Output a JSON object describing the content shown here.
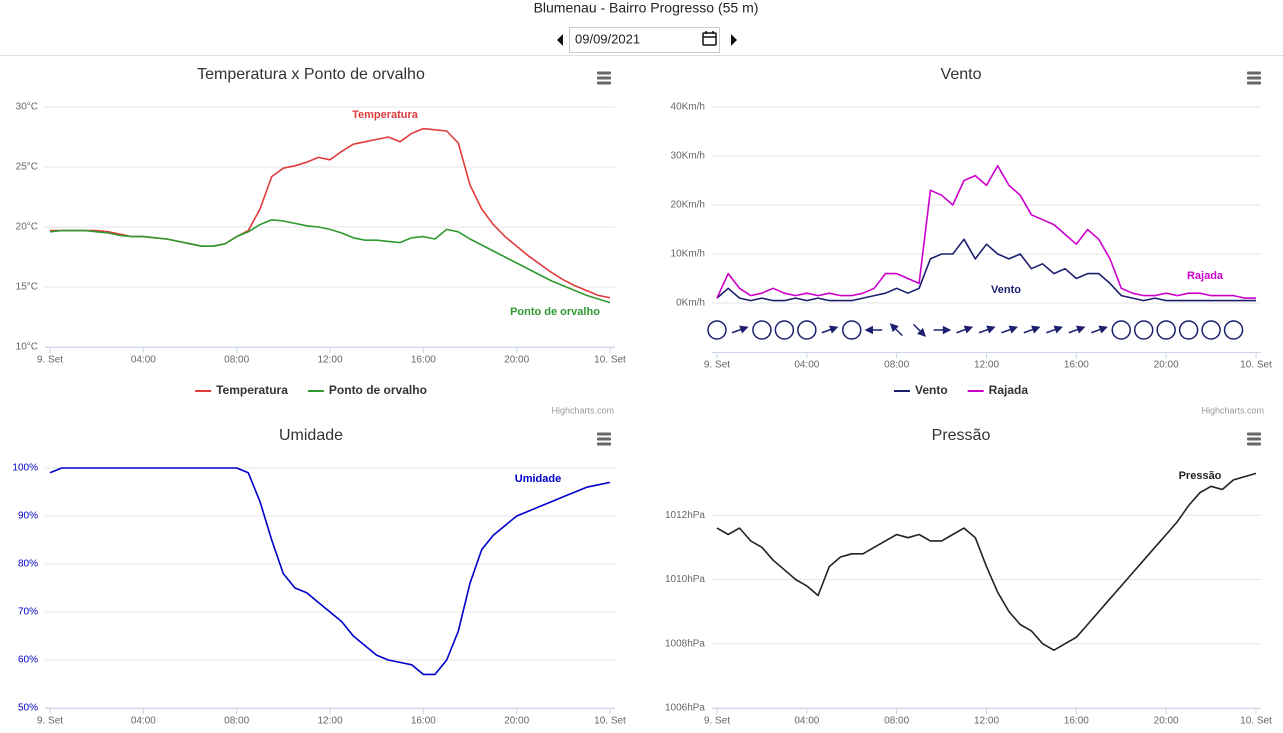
{
  "header": {
    "title": "Blumenau - Bairro Progresso (55 m)",
    "date": "09/09/2021"
  },
  "credits": "Highcharts.com",
  "chart_data": [
    {
      "type": "line",
      "title": "Temperatura x Ponto de orvalho",
      "x": [
        0,
        0.5,
        1,
        1.5,
        2,
        2.5,
        3,
        3.5,
        4,
        4.5,
        5,
        5.5,
        6,
        6.5,
        7,
        7.5,
        8,
        8.5,
        9,
        9.5,
        10,
        10.5,
        11,
        11.5,
        12,
        12.5,
        13,
        13.5,
        14,
        14.5,
        15,
        15.5,
        16,
        16.5,
        17,
        17.5,
        18,
        18.5,
        19,
        19.5,
        20,
        20.5,
        21,
        21.5,
        22,
        22.5,
        23,
        23.5,
        24
      ],
      "series": [
        {
          "name": "Temperatura",
          "color": "#e03c3c",
          "values": [
            19.7,
            19.7,
            19.7,
            19.7,
            19.7,
            19.6,
            19.4,
            19.2,
            19.2,
            19.1,
            19.0,
            18.8,
            18.6,
            18.4,
            18.4,
            18.6,
            19.2,
            19.7,
            21.5,
            24.2,
            24.9,
            25.1,
            25.4,
            25.8,
            25.6,
            26.3,
            26.9,
            27.1,
            27.3,
            27.5,
            27.1,
            27.8,
            28.2,
            28.1,
            28.0,
            27.0,
            23.5,
            21.5,
            20.2,
            19.2,
            18.4,
            17.6,
            16.9,
            16.2,
            15.6,
            15.1,
            14.7,
            14.3,
            14.1
          ]
        },
        {
          "name": "Ponto de orvalho",
          "color": "#2f9a2f",
          "values": [
            19.6,
            19.7,
            19.7,
            19.7,
            19.6,
            19.5,
            19.3,
            19.2,
            19.2,
            19.1,
            19.0,
            18.8,
            18.6,
            18.4,
            18.4,
            18.6,
            19.2,
            19.6,
            20.2,
            20.6,
            20.5,
            20.3,
            20.1,
            20.0,
            19.8,
            19.5,
            19.1,
            18.9,
            18.9,
            18.8,
            18.7,
            19.1,
            19.2,
            19.0,
            19.8,
            19.6,
            19.0,
            18.5,
            18.0,
            17.5,
            17.0,
            16.5,
            16.0,
            15.5,
            15.1,
            14.7,
            14.3,
            14.0,
            13.7
          ]
        }
      ],
      "xlim": [
        0,
        24
      ],
      "xticks": [
        {
          "value": 0,
          "label": "9. Set"
        },
        {
          "value": 4,
          "label": "04:00"
        },
        {
          "value": 8,
          "label": "08:00"
        },
        {
          "value": 12,
          "label": "12:00"
        },
        {
          "value": 16,
          "label": "16:00"
        },
        {
          "value": 20,
          "label": "20:00"
        },
        {
          "value": 24,
          "label": "10. Set"
        }
      ],
      "ylim": [
        10,
        30
      ],
      "yticks": [
        {
          "value": 10,
          "label": "10°C"
        },
        {
          "value": 15,
          "label": "15°C"
        },
        {
          "value": 20,
          "label": "20°C"
        },
        {
          "value": 25,
          "label": "25°C"
        },
        {
          "value": 30,
          "label": "30°C"
        }
      ],
      "grid": true,
      "legend": "bottom"
    },
    {
      "type": "line",
      "title": "Vento",
      "x": [
        0,
        0.5,
        1,
        1.5,
        2,
        2.5,
        3,
        3.5,
        4,
        4.5,
        5,
        5.5,
        6,
        6.5,
        7,
        7.5,
        8,
        8.5,
        9,
        9.5,
        10,
        10.5,
        11,
        11.5,
        12,
        12.5,
        13,
        13.5,
        14,
        14.5,
        15,
        15.5,
        16,
        16.5,
        17,
        17.5,
        18,
        18.5,
        19,
        19.5,
        20,
        20.5,
        21,
        21.5,
        22,
        22.5,
        23,
        23.5,
        24
      ],
      "series": [
        {
          "name": "Vento",
          "color": "#1c1f6e",
          "values": [
            1,
            3,
            1,
            0.5,
            1,
            0.5,
            0.5,
            1,
            0.5,
            1,
            0.5,
            0.5,
            0.5,
            1,
            1.5,
            2,
            3,
            2,
            3,
            9,
            10,
            10,
            13,
            9,
            12,
            10,
            9,
            10,
            7,
            8,
            6,
            7,
            5,
            6,
            6,
            4,
            1.5,
            1,
            0.5,
            1,
            0.5,
            0.5,
            0.5,
            0.5,
            0.5,
            0.5,
            0.5,
            0.5,
            0.5
          ]
        },
        {
          "name": "Rajada",
          "color": "#cc00cc",
          "values": [
            1,
            6,
            3,
            1.5,
            2,
            3,
            2,
            1.5,
            2,
            1.5,
            2,
            1.5,
            1.5,
            2,
            3,
            6,
            6,
            5,
            4,
            23,
            22,
            20,
            25,
            26,
            24,
            28,
            24,
            22,
            18,
            17,
            16,
            14,
            12,
            15,
            13,
            9,
            3,
            2,
            1.5,
            1.5,
            2,
            1.5,
            2,
            2,
            1.5,
            1.5,
            1.5,
            1,
            1
          ]
        }
      ],
      "wind_direction_x": [
        0,
        1,
        2,
        3,
        4,
        5,
        6,
        7,
        8,
        9,
        10,
        11,
        12,
        13,
        14,
        15,
        16,
        17,
        18,
        19,
        20,
        21,
        22,
        23
      ],
      "wind_direction": [
        null,
        250,
        null,
        null,
        null,
        250,
        null,
        90,
        135,
        315,
        270,
        250,
        250,
        250,
        250,
        250,
        250,
        250,
        null,
        null,
        null,
        null,
        null,
        null
      ],
      "xlim": [
        0,
        24
      ],
      "xticks": [
        {
          "value": 0,
          "label": "9. Set"
        },
        {
          "value": 4,
          "label": "04:00"
        },
        {
          "value": 8,
          "label": "08:00"
        },
        {
          "value": 12,
          "label": "12:00"
        },
        {
          "value": 16,
          "label": "16:00"
        },
        {
          "value": 20,
          "label": "20:00"
        },
        {
          "value": 24,
          "label": "10. Set"
        }
      ],
      "ylim": [
        -10,
        40
      ],
      "yticks": [
        {
          "value": 0,
          "label": "0Km/h"
        },
        {
          "value": 10,
          "label": "10Km/h"
        },
        {
          "value": 20,
          "label": "20Km/h"
        },
        {
          "value": 30,
          "label": "30Km/h"
        },
        {
          "value": 40,
          "label": "40Km/h"
        }
      ],
      "grid": true,
      "legend": "bottom"
    },
    {
      "type": "line",
      "title": "Umidade",
      "x": [
        0,
        0.5,
        1,
        1.5,
        2,
        2.5,
        3,
        3.5,
        4,
        4.5,
        5,
        5.5,
        6,
        6.5,
        7,
        7.5,
        8,
        8.5,
        9,
        9.5,
        10,
        10.5,
        11,
        11.5,
        12,
        12.5,
        13,
        13.5,
        14,
        14.5,
        15,
        15.5,
        16,
        16.5,
        17,
        17.5,
        18,
        18.5,
        19,
        19.5,
        20,
        20.5,
        21,
        21.5,
        22,
        22.5,
        23,
        23.5,
        24
      ],
      "series": [
        {
          "name": "Umidade",
          "color": "#0000cc",
          "values": [
            99,
            100,
            100,
            100,
            100,
            100,
            100,
            100,
            100,
            100,
            100,
            100,
            100,
            100,
            100,
            100,
            100,
            99,
            93,
            85,
            78,
            75,
            74,
            72,
            70,
            68,
            65,
            63,
            61,
            60,
            59.5,
            59,
            57,
            57,
            60,
            66,
            76,
            83,
            86,
            88,
            90,
            91,
            92,
            93,
            94,
            95,
            96,
            96.5,
            97
          ]
        }
      ],
      "xlim": [
        0,
        24
      ],
      "xticks": [
        {
          "value": 0,
          "label": "9. Set"
        },
        {
          "value": 4,
          "label": "04:00"
        },
        {
          "value": 8,
          "label": "08:00"
        },
        {
          "value": 12,
          "label": "12:00"
        },
        {
          "value": 16,
          "label": "16:00"
        },
        {
          "value": 20,
          "label": "20:00"
        },
        {
          "value": 24,
          "label": "10. Set"
        }
      ],
      "ylim": [
        50,
        100
      ],
      "yticks": [
        {
          "value": 50,
          "label": "50%"
        },
        {
          "value": 60,
          "label": "60%"
        },
        {
          "value": 70,
          "label": "70%"
        },
        {
          "value": 80,
          "label": "80%"
        },
        {
          "value": 90,
          "label": "90%"
        },
        {
          "value": 100,
          "label": "100%"
        }
      ],
      "grid": true
    },
    {
      "type": "line",
      "title": "Pressão",
      "x": [
        0,
        0.5,
        1,
        1.5,
        2,
        2.5,
        3,
        3.5,
        4,
        4.5,
        5,
        5.5,
        6,
        6.5,
        7,
        7.5,
        8,
        8.5,
        9,
        9.5,
        10,
        10.5,
        11,
        11.5,
        12,
        12.5,
        13,
        13.5,
        14,
        14.5,
        15,
        15.5,
        16,
        16.5,
        17,
        17.5,
        18,
        18.5,
        19,
        19.5,
        20,
        20.5,
        21,
        21.5,
        22,
        22.5,
        23,
        23.5,
        24
      ],
      "series": [
        {
          "name": "Pressão",
          "color": "#222222",
          "values": [
            1011.6,
            1011.4,
            1011.6,
            1011.2,
            1011.0,
            1010.6,
            1010.3,
            1010.0,
            1009.8,
            1009.5,
            1010.4,
            1010.7,
            1010.8,
            1010.8,
            1011.0,
            1011.2,
            1011.4,
            1011.3,
            1011.4,
            1011.2,
            1011.2,
            1011.4,
            1011.6,
            1011.3,
            1010.4,
            1009.6,
            1009.0,
            1008.6,
            1008.4,
            1008.0,
            1007.8,
            1008.0,
            1008.2,
            1008.6,
            1009.0,
            1009.4,
            1009.8,
            1010.2,
            1010.6,
            1011.0,
            1011.4,
            1011.8,
            1012.3,
            1012.7,
            1012.9,
            1012.8,
            1013.1,
            1013.2,
            1013.3
          ]
        }
      ],
      "xlim": [
        0,
        24
      ],
      "xticks": [
        {
          "value": 0,
          "label": "9. Set"
        },
        {
          "value": 4,
          "label": "04:00"
        },
        {
          "value": 8,
          "label": "08:00"
        },
        {
          "value": 12,
          "label": "12:00"
        },
        {
          "value": 16,
          "label": "16:00"
        },
        {
          "value": 20,
          "label": "20:00"
        },
        {
          "value": 24,
          "label": "10. Set"
        }
      ],
      "ylim": [
        1006,
        1013.5
      ],
      "yticks": [
        {
          "value": 1006,
          "label": "1006hPa"
        },
        {
          "value": 1008,
          "label": "1008hPa"
        },
        {
          "value": 1010,
          "label": "1010hPa"
        },
        {
          "value": 1012,
          "label": "1012hPa"
        }
      ],
      "grid": true
    }
  ]
}
